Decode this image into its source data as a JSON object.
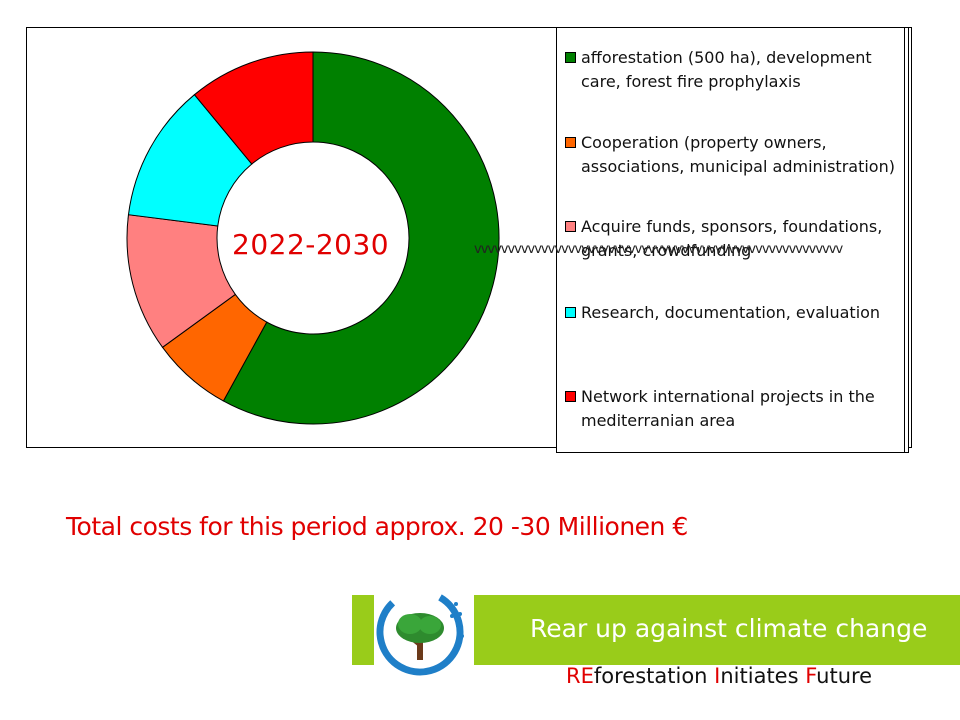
{
  "chart_data": {
    "type": "pie",
    "donut": true,
    "center_label": "2022-2030",
    "slices": [
      {
        "label": "afforestation (500 ha), development care, forest fire prophylaxis",
        "value": 58,
        "color": "#008000"
      },
      {
        "label": "Cooperation (property owners, associations, municipal administration)",
        "value": 7,
        "color": "#ff6600"
      },
      {
        "label": "Acquire funds, sponsors, foundations, grants, crowdfunding",
        "value": 12,
        "color": "#ff8080"
      },
      {
        "label": "Research, documentation, evaluation",
        "value": 12,
        "color": "#00ffff"
      },
      {
        "label": "Network international projects in the mediterranian area",
        "value": 11,
        "color": "#ff0000"
      }
    ],
    "legend_position": "right"
  },
  "legend": [
    {
      "line1": "afforestation (500 ha), development",
      "line2": "care, forest fire prophylaxis"
    },
    {
      "line1": "Cooperation (property owners,",
      "line2": "associations, municipal administration)"
    },
    {
      "line1": "Acquire funds, sponsors, foundations,",
      "line2": "grants, crowdfunding"
    },
    {
      "line1": "Research, documentation, evaluation",
      "line2": ""
    },
    {
      "line1": "Network international projects in the",
      "line2": "mediterranian area"
    }
  ],
  "stray_text": "vvvvvvvvvvvvvvvvvvvvvvvvvvvvvvvvvvvvvvvvvvvvvvvvvvvvvvv",
  "total_costs": "Total costs for this period approx. 20 -30 Millionen €",
  "slogan": "Rear up against climate change",
  "tagline": {
    "p1": "RE",
    "p2": "forestation ",
    "p3": "I",
    "p4": "nitiates ",
    "p5": "F",
    "p6": "uture"
  },
  "colors": {
    "accent_red": "#e00000",
    "bar_green": "#99cc1a"
  }
}
